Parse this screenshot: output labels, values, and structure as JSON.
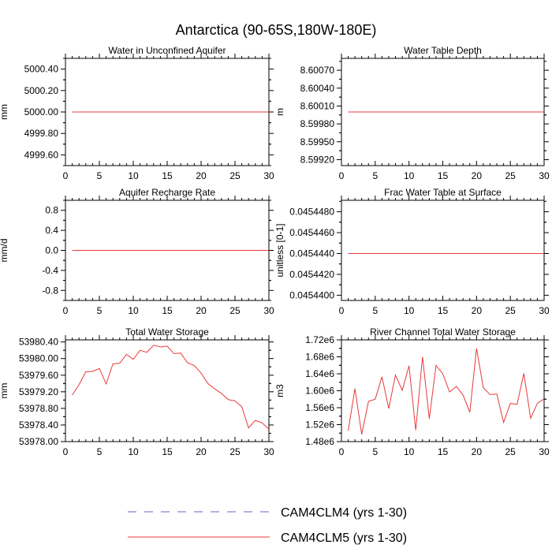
{
  "page": {
    "title": "Antarctica (90-65S,180W-180E)"
  },
  "legend": {
    "position": "bottom-center",
    "entries": [
      {
        "label": "CAM4CLM4 (yrs 1-30)",
        "color": "#6666cc",
        "style": "dashed"
      },
      {
        "label": "CAM4CLM5 (yrs 1-30)",
        "color": "#e8393a",
        "style": "solid"
      }
    ]
  },
  "chart_data": [
    {
      "type": "line",
      "title": "Water in Unconfined Aquifer",
      "ylabel": "mm",
      "xlim": [
        0,
        30
      ],
      "ylim": [
        4999.5,
        5000.5
      ],
      "xticks": [
        0,
        5,
        10,
        15,
        20,
        25,
        30
      ],
      "yticks": [
        4999.6,
        4999.8,
        5000.0,
        5000.2,
        5000.4
      ],
      "ytick_labels": [
        "4999.60",
        "4999.80",
        "5000.00",
        "5000.20",
        "5000.40"
      ],
      "series": [
        {
          "name": "CAM4CLM5 (yrs 1-30)",
          "color": "#e8393a",
          "x": [
            1,
            30
          ],
          "y": [
            5000.0,
            5000.0
          ]
        }
      ]
    },
    {
      "type": "line",
      "title": "Water Table Depth",
      "ylabel": "m",
      "xlim": [
        0,
        30
      ],
      "ylim": [
        8.5991,
        8.6009
      ],
      "xticks": [
        0,
        5,
        10,
        15,
        20,
        25,
        30
      ],
      "yticks": [
        8.5992,
        8.5995,
        8.5998,
        8.6001,
        8.6004,
        8.6007
      ],
      "ytick_labels": [
        "8.59920",
        "8.59950",
        "8.59980",
        "8.60010",
        "8.60040",
        "8.60070"
      ],
      "series": [
        {
          "name": "CAM4CLM5 (yrs 1-30)",
          "color": "#e8393a",
          "x": [
            1,
            30
          ],
          "y": [
            8.6,
            8.6
          ]
        }
      ]
    },
    {
      "type": "line",
      "title": "Aquifer Recharge Rate",
      "ylabel": "mm/d",
      "xlim": [
        0,
        30
      ],
      "ylim": [
        -1.0,
        1.0
      ],
      "xticks": [
        0,
        5,
        10,
        15,
        20,
        25,
        30
      ],
      "yticks": [
        -0.8,
        -0.4,
        0.0,
        0.4,
        0.8
      ],
      "ytick_labels": [
        "-0.8",
        "-0.4",
        "0.0",
        "0.4",
        "0.8"
      ],
      "series": [
        {
          "name": "CAM4CLM5 (yrs 1-30)",
          "color": "#e8393a",
          "x": [
            1,
            30
          ],
          "y": [
            0.0,
            0.0
          ]
        }
      ]
    },
    {
      "type": "line",
      "title": "Frac Water Table at Surface",
      "ylabel": "unitless [0-1]",
      "xlim": [
        0,
        30
      ],
      "ylim": [
        0.0454395,
        0.0454491
      ],
      "xticks": [
        0,
        5,
        10,
        15,
        20,
        25,
        30
      ],
      "yticks": [
        0.04544,
        0.045442,
        0.045444,
        0.045446,
        0.045448
      ],
      "ytick_labels": [
        "0.0454400",
        "0.0454420",
        "0.0454440",
        "0.0454460",
        "0.0454480"
      ],
      "series": [
        {
          "name": "CAM4CLM5 (yrs 1-30)",
          "color": "#e8393a",
          "x": [
            1,
            30
          ],
          "y": [
            0.045444,
            0.045444
          ]
        }
      ]
    },
    {
      "type": "line",
      "title": "Total Water Storage",
      "ylabel": "mm",
      "xlim": [
        0,
        30
      ],
      "ylim": [
        53978.0,
        53980.45
      ],
      "xticks": [
        0,
        5,
        10,
        15,
        20,
        25,
        30
      ],
      "yticks": [
        53978.0,
        53978.4,
        53978.8,
        53979.2,
        53979.6,
        53980.0,
        53980.4
      ],
      "ytick_labels": [
        "53978.00",
        "53978.40",
        "53978.80",
        "53979.20",
        "53979.60",
        "53980.00",
        "53980.40"
      ],
      "series": [
        {
          "name": "CAM4CLM5 (yrs 1-30)",
          "color": "#e8393a",
          "x": [
            1,
            2,
            3,
            4,
            5,
            6,
            7,
            8,
            9,
            10,
            11,
            12,
            13,
            14,
            15,
            16,
            17,
            18,
            19,
            20,
            21,
            22,
            23,
            24,
            25,
            26,
            27,
            28,
            29,
            30
          ],
          "y": [
            53979.12,
            53979.37,
            53979.68,
            53979.69,
            53979.76,
            53979.39,
            53979.87,
            53979.89,
            53980.1,
            53979.98,
            53980.2,
            53980.15,
            53980.32,
            53980.28,
            53980.3,
            53980.12,
            53980.13,
            53979.9,
            53979.83,
            53979.65,
            53979.4,
            53979.27,
            53979.16,
            53979.01,
            53978.98,
            53978.84,
            53978.33,
            53978.51,
            53978.45,
            53978.3
          ]
        }
      ]
    },
    {
      "type": "line",
      "title": "River Channel Total Water Storage",
      "ylabel": "m3",
      "xlim": [
        0,
        30
      ],
      "ylim": [
        1480000,
        1720000
      ],
      "xticks": [
        0,
        5,
        10,
        15,
        20,
        25,
        30
      ],
      "yticks": [
        1480000,
        1520000,
        1560000,
        1600000,
        1640000,
        1680000,
        1720000
      ],
      "ytick_labels": [
        "1.48e6",
        "1.52e6",
        "1.56e6",
        "1.60e6",
        "1.64e6",
        "1.68e6",
        "1.72e6"
      ],
      "series": [
        {
          "name": "CAM4CLM5 (yrs 1-30)",
          "color": "#e8393a",
          "x": [
            1,
            2,
            3,
            4,
            5,
            6,
            7,
            8,
            9,
            10,
            11,
            12,
            13,
            14,
            15,
            16,
            17,
            18,
            19,
            20,
            21,
            22,
            23,
            24,
            25,
            26,
            27,
            28,
            29,
            30
          ],
          "y": [
            1506000,
            1605000,
            1497000,
            1575000,
            1580000,
            1633000,
            1558000,
            1637000,
            1601000,
            1659000,
            1507000,
            1680000,
            1534000,
            1660000,
            1640000,
            1597000,
            1610000,
            1590000,
            1549000,
            1700000,
            1607000,
            1591000,
            1592000,
            1525000,
            1570000,
            1568000,
            1641000,
            1535000,
            1570000,
            1581000
          ]
        }
      ]
    }
  ]
}
